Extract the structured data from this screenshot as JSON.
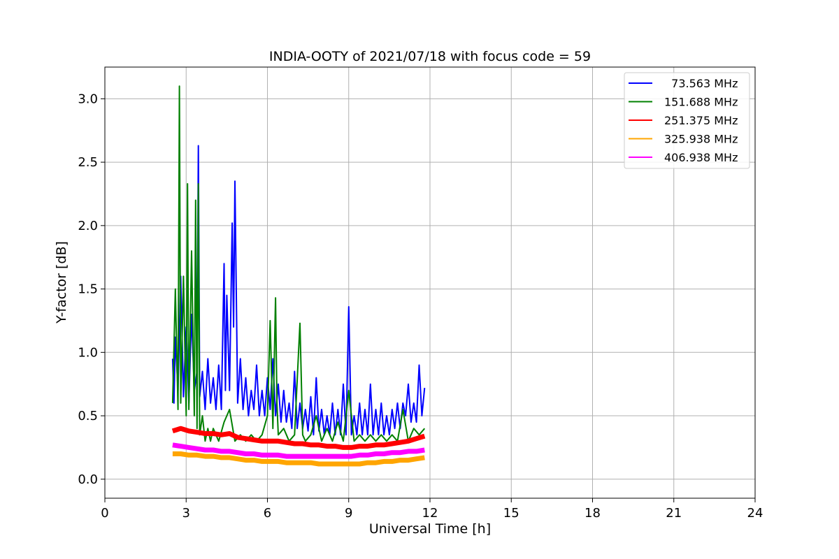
{
  "chart_data": {
    "type": "line",
    "title": "INDIA-OOTY of 2021/07/18 with focus code = 59",
    "xlabel": "Universal Time [h]",
    "ylabel": "Y-factor [dB]",
    "xlim": [
      0,
      24
    ],
    "ylim": [
      -0.15,
      3.25
    ],
    "xticks": [
      0,
      3,
      6,
      9,
      12,
      15,
      18,
      21,
      24
    ],
    "yticks": [
      0.0,
      0.5,
      1.0,
      1.5,
      2.0,
      2.5,
      3.0
    ],
    "grid": true,
    "legend_position": "top-right",
    "series": [
      {
        "name": "  73.563 MHz",
        "color": "#0000ff",
        "x": [
          2.5,
          2.55,
          2.6,
          2.7,
          2.8,
          2.9,
          3.0,
          3.1,
          3.2,
          3.3,
          3.4,
          3.45,
          3.5,
          3.6,
          3.7,
          3.8,
          3.9,
          4.0,
          4.1,
          4.2,
          4.3,
          4.4,
          4.45,
          4.5,
          4.6,
          4.7,
          4.75,
          4.8,
          4.9,
          5.0,
          5.1,
          5.2,
          5.3,
          5.4,
          5.5,
          5.6,
          5.7,
          5.8,
          5.9,
          6.0,
          6.1,
          6.2,
          6.3,
          6.4,
          6.5,
          6.6,
          6.7,
          6.8,
          6.9,
          7.0,
          7.1,
          7.2,
          7.3,
          7.4,
          7.5,
          7.6,
          7.7,
          7.8,
          7.9,
          8.0,
          8.1,
          8.2,
          8.3,
          8.4,
          8.5,
          8.6,
          8.7,
          8.8,
          8.9,
          9.0,
          9.1,
          9.2,
          9.3,
          9.4,
          9.5,
          9.6,
          9.7,
          9.8,
          9.9,
          10.0,
          10.1,
          10.2,
          10.3,
          10.4,
          10.5,
          10.6,
          10.7,
          10.8,
          10.9,
          11.0,
          11.1,
          11.2,
          11.3,
          11.4,
          11.5,
          11.6,
          11.7,
          11.8
        ],
        "y": [
          0.95,
          0.6,
          1.12,
          0.7,
          1.6,
          0.65,
          1.2,
          0.6,
          1.3,
          0.7,
          0.85,
          2.63,
          0.65,
          0.85,
          0.55,
          0.95,
          0.6,
          0.8,
          0.55,
          0.9,
          0.55,
          1.7,
          0.7,
          1.45,
          0.7,
          2.02,
          1.2,
          2.35,
          0.6,
          0.95,
          0.55,
          0.8,
          0.5,
          0.7,
          0.55,
          0.9,
          0.5,
          0.7,
          0.5,
          0.8,
          0.55,
          0.95,
          0.5,
          0.75,
          0.45,
          0.7,
          0.45,
          0.6,
          0.4,
          0.85,
          0.4,
          0.6,
          0.4,
          0.55,
          0.38,
          0.65,
          0.35,
          0.8,
          0.38,
          0.55,
          0.35,
          0.5,
          0.35,
          0.6,
          0.35,
          0.55,
          0.35,
          0.75,
          0.35,
          1.36,
          0.35,
          0.5,
          0.35,
          0.6,
          0.35,
          0.55,
          0.35,
          0.75,
          0.35,
          0.55,
          0.35,
          0.6,
          0.35,
          0.5,
          0.35,
          0.55,
          0.4,
          0.6,
          0.4,
          0.6,
          0.5,
          0.75,
          0.45,
          0.6,
          0.45,
          0.9,
          0.5,
          0.72
        ]
      },
      {
        "name": "151.688 MHz",
        "color": "#008000",
        "x": [
          2.5,
          2.6,
          2.7,
          2.75,
          2.8,
          2.9,
          3.0,
          3.05,
          3.1,
          3.2,
          3.3,
          3.35,
          3.4,
          3.45,
          3.5,
          3.6,
          3.7,
          3.8,
          3.9,
          4.0,
          4.2,
          4.4,
          4.6,
          4.8,
          5.0,
          5.2,
          5.4,
          5.6,
          5.8,
          6.0,
          6.1,
          6.2,
          6.3,
          6.35,
          6.4,
          6.6,
          6.8,
          7.0,
          7.2,
          7.3,
          7.4,
          7.6,
          7.8,
          8.0,
          8.2,
          8.4,
          8.6,
          8.8,
          9.0,
          9.2,
          9.4,
          9.6,
          9.8,
          10.0,
          10.2,
          10.4,
          10.6,
          10.8,
          11.0,
          11.2,
          11.4,
          11.6,
          11.8
        ],
        "y": [
          0.6,
          1.5,
          0.55,
          3.1,
          0.6,
          1.6,
          0.5,
          2.33,
          0.55,
          1.8,
          0.5,
          2.2,
          0.4,
          2.33,
          0.35,
          0.5,
          0.3,
          0.4,
          0.3,
          0.4,
          0.3,
          0.45,
          0.55,
          0.3,
          0.35,
          0.3,
          0.35,
          0.3,
          0.35,
          0.5,
          1.25,
          0.4,
          1.43,
          0.6,
          0.35,
          0.4,
          0.3,
          0.35,
          1.23,
          0.35,
          0.3,
          0.35,
          0.5,
          0.3,
          0.4,
          0.3,
          0.45,
          0.3,
          0.7,
          0.3,
          0.35,
          0.3,
          0.35,
          0.3,
          0.35,
          0.3,
          0.35,
          0.3,
          0.55,
          0.3,
          0.4,
          0.35,
          0.4
        ]
      },
      {
        "name": "251.375 MHz",
        "color": "#ff0000",
        "x": [
          2.5,
          2.8,
          3.1,
          3.4,
          3.7,
          4.0,
          4.3,
          4.6,
          4.9,
          5.2,
          5.5,
          5.8,
          6.1,
          6.4,
          6.7,
          7.0,
          7.3,
          7.6,
          7.9,
          8.2,
          8.5,
          8.8,
          9.1,
          9.4,
          9.7,
          10.0,
          10.3,
          10.6,
          10.9,
          11.2,
          11.5,
          11.8
        ],
        "y": [
          0.38,
          0.4,
          0.38,
          0.37,
          0.36,
          0.36,
          0.35,
          0.36,
          0.33,
          0.32,
          0.31,
          0.3,
          0.3,
          0.3,
          0.29,
          0.28,
          0.28,
          0.27,
          0.27,
          0.26,
          0.26,
          0.25,
          0.25,
          0.26,
          0.26,
          0.27,
          0.27,
          0.28,
          0.29,
          0.3,
          0.32,
          0.34
        ]
      },
      {
        "name": "325.938 MHz",
        "color": "#ffa500",
        "x": [
          2.5,
          2.8,
          3.1,
          3.4,
          3.7,
          4.0,
          4.3,
          4.6,
          4.9,
          5.2,
          5.5,
          5.8,
          6.1,
          6.4,
          6.7,
          7.0,
          7.3,
          7.6,
          7.9,
          8.2,
          8.5,
          8.8,
          9.1,
          9.4,
          9.7,
          10.0,
          10.3,
          10.6,
          10.9,
          11.2,
          11.5,
          11.8
        ],
        "y": [
          0.2,
          0.2,
          0.19,
          0.19,
          0.18,
          0.18,
          0.17,
          0.17,
          0.16,
          0.15,
          0.15,
          0.14,
          0.14,
          0.14,
          0.13,
          0.13,
          0.13,
          0.13,
          0.12,
          0.12,
          0.12,
          0.12,
          0.12,
          0.12,
          0.13,
          0.13,
          0.14,
          0.14,
          0.15,
          0.15,
          0.16,
          0.17
        ]
      },
      {
        "name": "406.938 MHz",
        "color": "#ff00ff",
        "x": [
          2.5,
          2.8,
          3.1,
          3.4,
          3.7,
          4.0,
          4.3,
          4.6,
          4.9,
          5.2,
          5.5,
          5.8,
          6.1,
          6.4,
          6.7,
          7.0,
          7.3,
          7.6,
          7.9,
          8.2,
          8.5,
          8.8,
          9.1,
          9.4,
          9.7,
          10.0,
          10.3,
          10.6,
          10.9,
          11.2,
          11.5,
          11.8
        ],
        "y": [
          0.27,
          0.26,
          0.25,
          0.24,
          0.23,
          0.23,
          0.22,
          0.22,
          0.21,
          0.2,
          0.2,
          0.19,
          0.19,
          0.19,
          0.18,
          0.18,
          0.18,
          0.18,
          0.18,
          0.18,
          0.18,
          0.18,
          0.18,
          0.19,
          0.19,
          0.2,
          0.2,
          0.21,
          0.21,
          0.22,
          0.22,
          0.23
        ]
      }
    ]
  }
}
